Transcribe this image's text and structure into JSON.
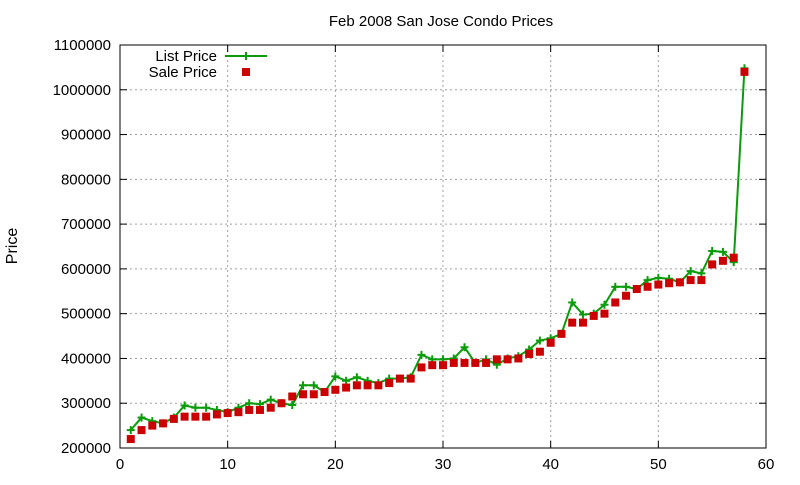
{
  "chart_data": {
    "type": "line",
    "title": "Feb 2008 San Jose Condo Prices",
    "xlabel": "",
    "ylabel": "Price",
    "xlim": [
      0,
      60
    ],
    "ylim": [
      200000,
      1100000
    ],
    "xticks": [
      "0",
      "10",
      "20",
      "30",
      "40",
      "50",
      "60"
    ],
    "yticks": [
      "200000",
      "300000",
      "400000",
      "500000",
      "600000",
      "700000",
      "800000",
      "900000",
      "1000000",
      "1100000"
    ],
    "grid": true,
    "legend_position": "top-left",
    "x": [
      1,
      2,
      3,
      4,
      5,
      6,
      7,
      8,
      9,
      10,
      11,
      12,
      13,
      14,
      15,
      16,
      17,
      18,
      19,
      20,
      21,
      22,
      23,
      24,
      25,
      26,
      27,
      28,
      29,
      30,
      31,
      32,
      33,
      34,
      35,
      36,
      37,
      38,
      39,
      40,
      41,
      42,
      43,
      44,
      45,
      46,
      47,
      48,
      49,
      50,
      51,
      52,
      53,
      54,
      55,
      56,
      57,
      58
    ],
    "series": [
      {
        "name": "List Price",
        "color": "#0a9c0a",
        "marker": "plus",
        "values": [
          240000,
          268000,
          260000,
          255000,
          268000,
          295000,
          290000,
          290000,
          285000,
          280000,
          290000,
          300000,
          298000,
          308000,
          300000,
          296000,
          340000,
          340000,
          325000,
          360000,
          350000,
          358000,
          350000,
          345000,
          355000,
          355000,
          358000,
          408000,
          398000,
          398000,
          400000,
          425000,
          390000,
          398000,
          386000,
          400000,
          405000,
          420000,
          440000,
          445000,
          455000,
          525000,
          498000,
          500000,
          520000,
          560000,
          560000,
          555000,
          575000,
          580000,
          578000,
          570000,
          595000,
          590000,
          640000,
          638000,
          615000,
          1048000
        ]
      },
      {
        "name": "Sale Price",
        "color": "#cc0000",
        "marker": "square",
        "values": [
          220000,
          240000,
          250000,
          255000,
          265000,
          270000,
          270000,
          270000,
          275000,
          278000,
          280000,
          285000,
          285000,
          290000,
          300000,
          315000,
          320000,
          320000,
          325000,
          330000,
          335000,
          340000,
          340000,
          340000,
          345000,
          355000,
          355000,
          380000,
          385000,
          385000,
          390000,
          390000,
          390000,
          390000,
          398000,
          398000,
          400000,
          410000,
          415000,
          435000,
          455000,
          480000,
          480000,
          495000,
          500000,
          525000,
          540000,
          555000,
          560000,
          565000,
          568000,
          570000,
          575000,
          575000,
          610000,
          618000,
          625000,
          1040000
        ]
      }
    ]
  }
}
